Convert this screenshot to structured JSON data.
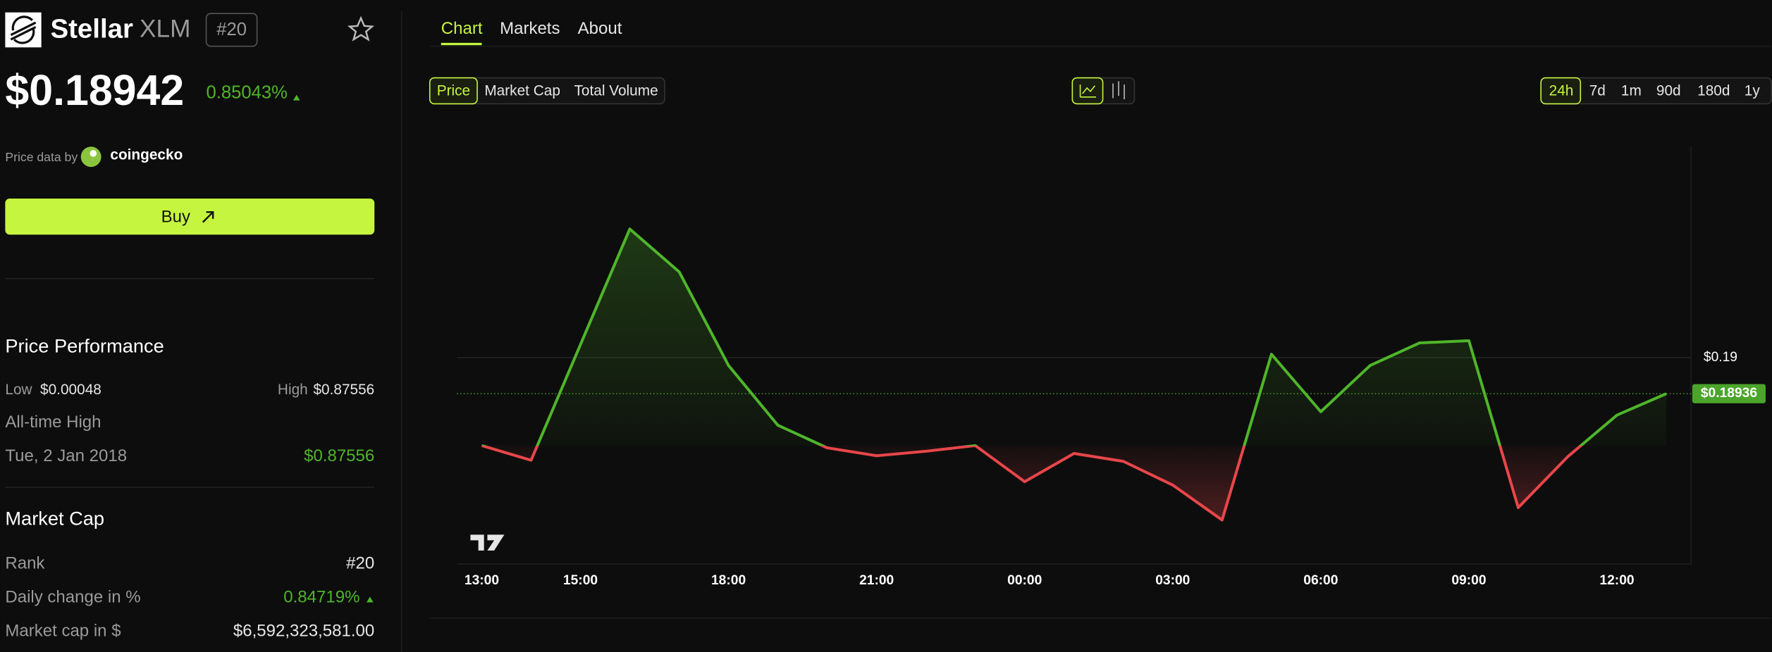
{
  "header": {
    "name": "Stellar",
    "symbol": "XLM",
    "rank": "#20",
    "price": "$0.18942",
    "change": "0.85043%",
    "source_label": "Price data by",
    "source": "coingecko",
    "buy": "Buy"
  },
  "performance": {
    "title": "Price Performance",
    "low_label": "Low",
    "low": "$0.00048",
    "high_label": "High",
    "high": "$0.87556",
    "ath_label": "All-time High",
    "ath_date": "Tue, 2 Jan 2018",
    "ath_value": "$0.87556"
  },
  "market_cap": {
    "title": "Market Cap",
    "rows": [
      [
        "Rank",
        "#20"
      ],
      [
        "Daily change in %",
        "0.84719%"
      ],
      [
        "Market cap in $",
        "$6,592,323,581.00"
      ]
    ]
  },
  "tabs": [
    "Chart",
    "Markets",
    "About"
  ],
  "metrics": [
    "Price",
    "Market Cap",
    "Total Volume"
  ],
  "ranges": [
    "24h",
    "7d",
    "1m",
    "90d",
    "180d",
    "1y"
  ],
  "chart_data": {
    "type": "line",
    "categories": [
      "13:00",
      null,
      "15:00",
      null,
      null,
      "18:00",
      null,
      null,
      "21:00",
      null,
      null,
      "00:00",
      null,
      null,
      "03:00",
      null,
      null,
      "06:00",
      null,
      null,
      "09:00",
      null,
      null,
      "12:00",
      null
    ],
    "series": [
      {
        "name": "Price",
        "color": "#4fb52a",
        "down_color": "#e8464a",
        "values": [
          0.18844,
          0.18818,
          0.19023,
          0.19228,
          0.19152,
          0.18986,
          0.1888,
          0.1884,
          0.18826,
          0.18834,
          0.18844,
          0.1878,
          0.1883,
          0.18816,
          0.18774,
          0.18712,
          0.19006,
          0.18904,
          0.18986,
          0.19026,
          0.1903,
          0.18734,
          0.18824,
          0.18898,
          0.18936
        ]
      }
    ],
    "ylim": [
      0.18634,
      0.19374
    ],
    "yticks": [
      {
        "value": 0.19,
        "label": "$0.19"
      }
    ],
    "price_line": {
      "value": 0.18936,
      "label": "$0.18936"
    },
    "grid": true
  }
}
